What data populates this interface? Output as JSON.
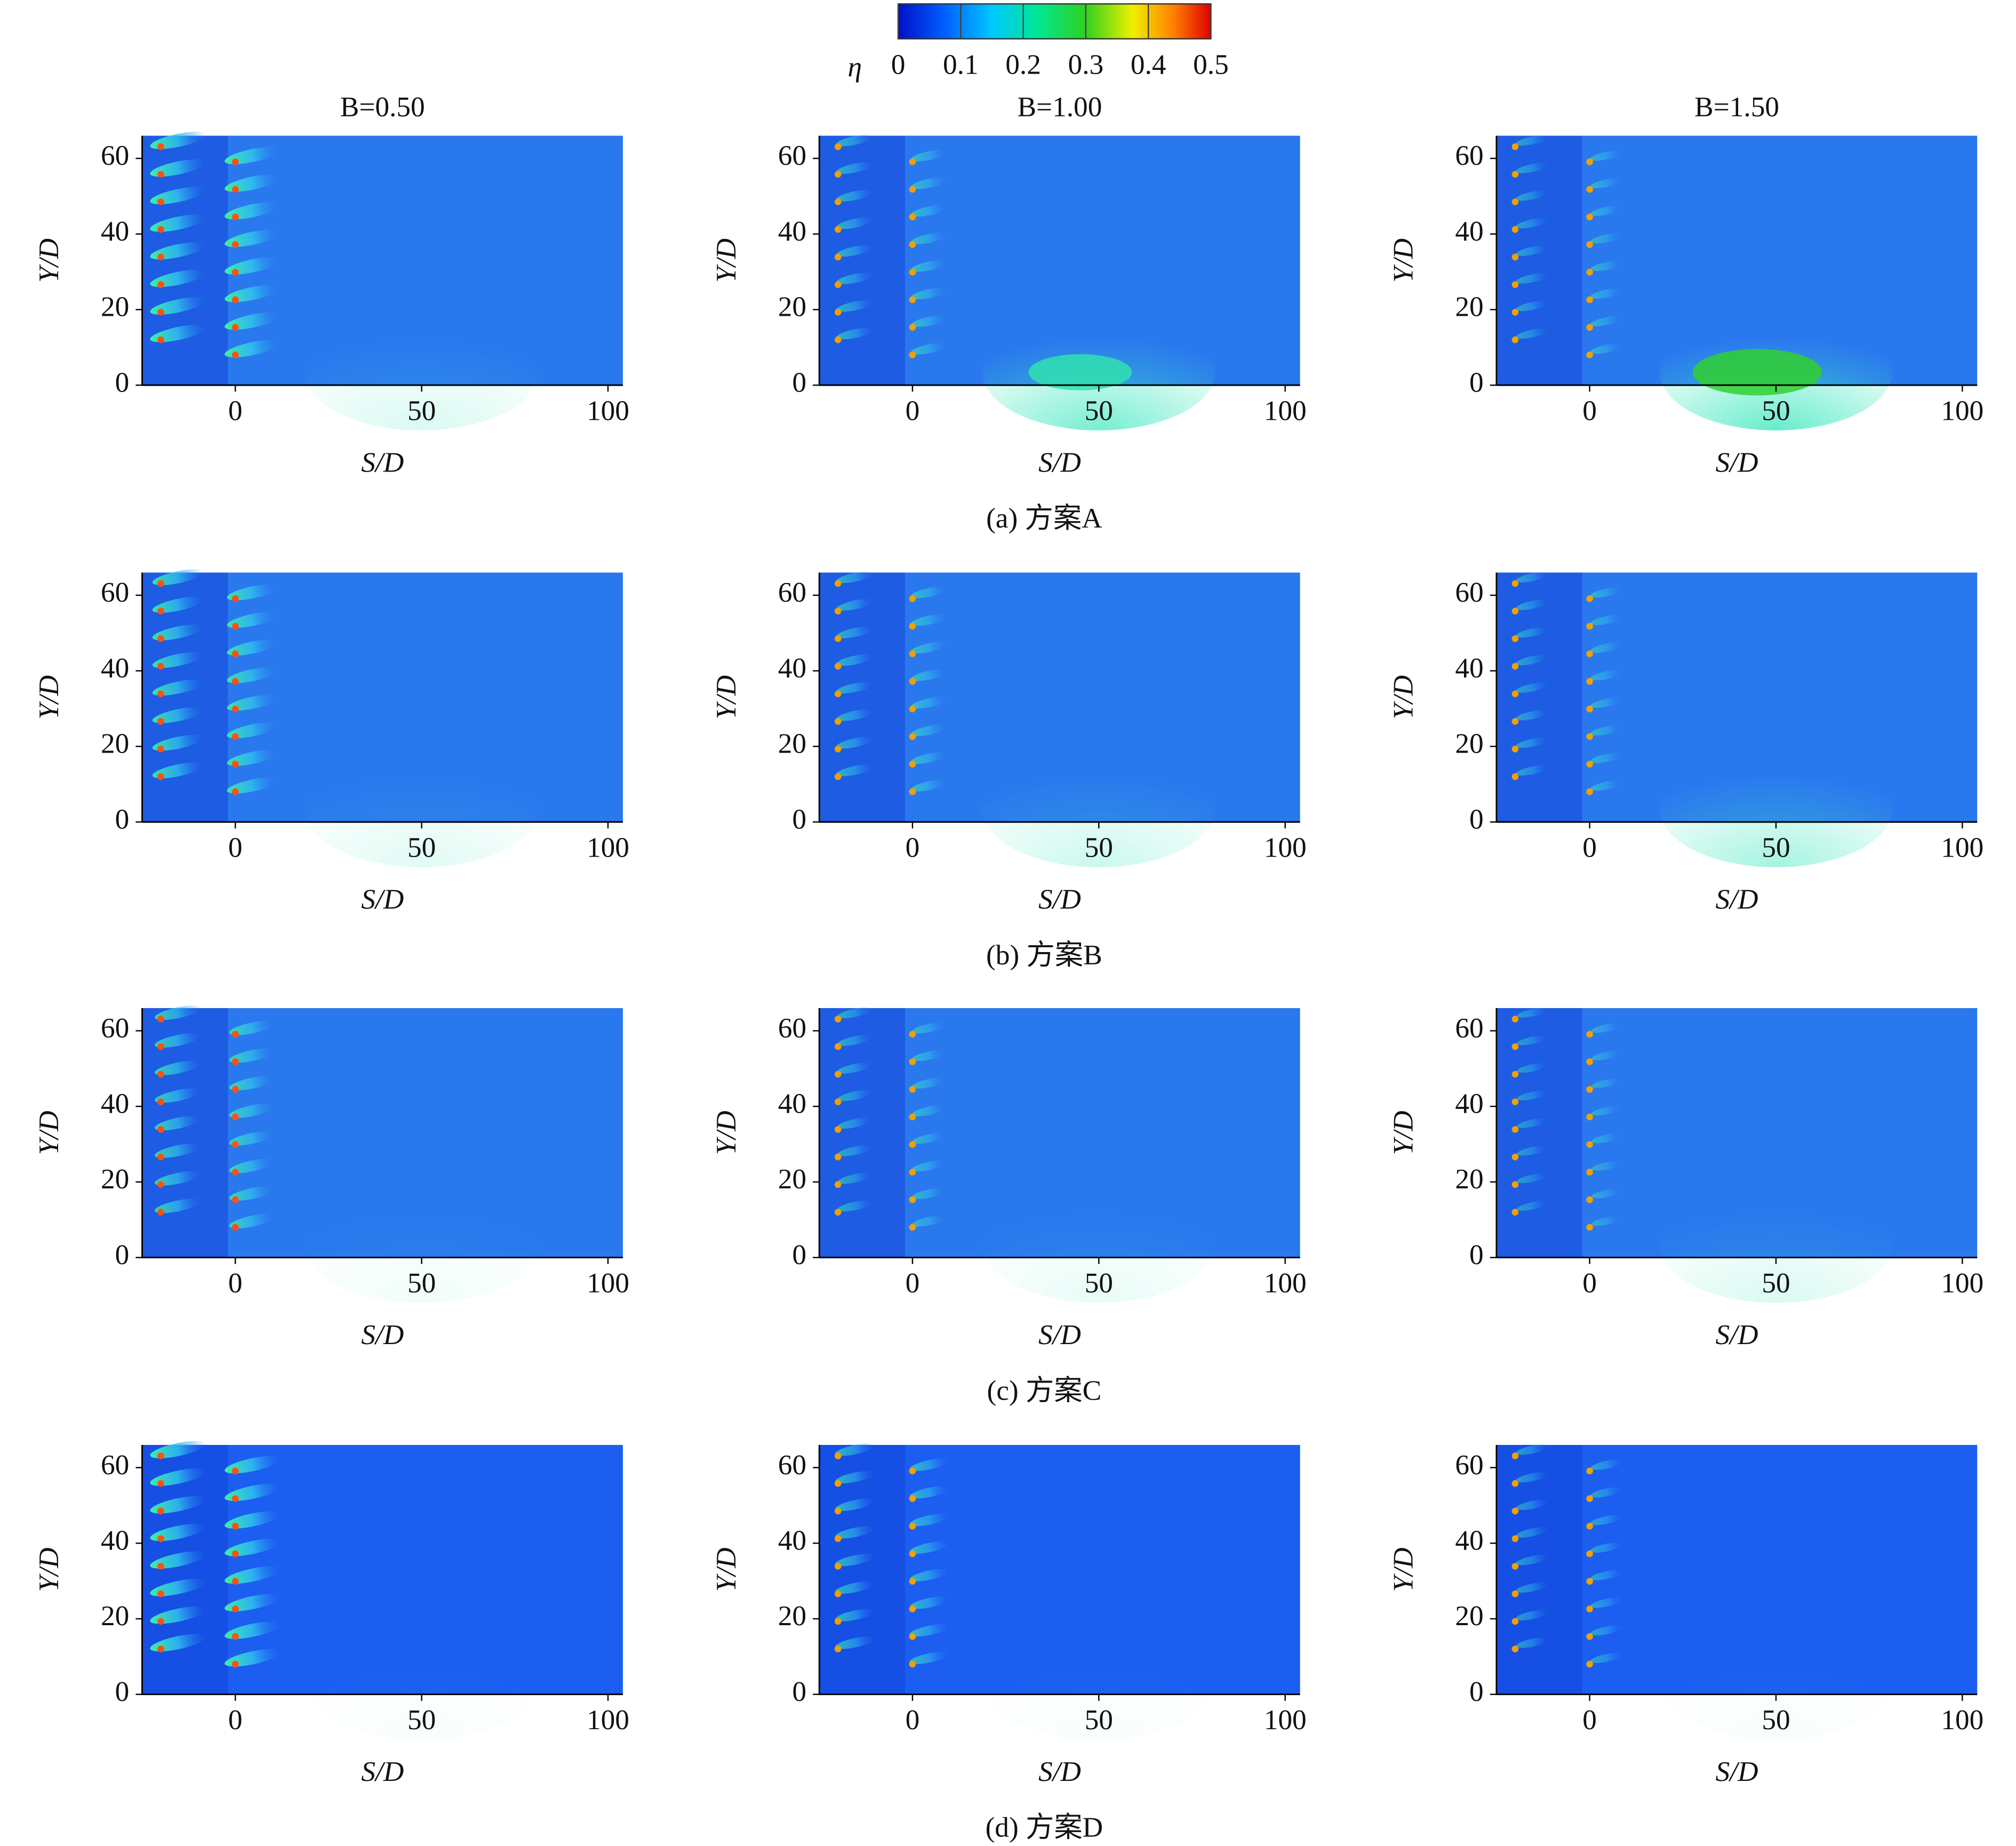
{
  "colorbar": {
    "label": "η",
    "lim": [
      0,
      0.5
    ],
    "ticks": [
      0,
      0.1,
      0.2,
      0.3,
      0.4,
      0.5
    ]
  },
  "captions": [
    "(a) 方案A",
    "(b) 方案B",
    "(c) 方案C",
    "(d) 方案D"
  ],
  "chart_data": [
    {
      "type": "heatmap",
      "title": "B=0.50",
      "xlabel": "S/D",
      "ylabel": "Y/D",
      "xlim": [
        -25,
        104
      ],
      "ylim": [
        0,
        66
      ],
      "xticks": [
        0,
        50,
        100
      ],
      "yticks": [
        0,
        20,
        40,
        60
      ]
    },
    {
      "type": "heatmap",
      "title": "B=1.00",
      "xlabel": "S/D",
      "ylabel": "Y/D",
      "xlim": [
        -25,
        104
      ],
      "ylim": [
        0,
        66
      ],
      "xticks": [
        0,
        50,
        100
      ],
      "yticks": [
        0,
        20,
        40,
        60
      ]
    },
    {
      "type": "heatmap",
      "title": "B=1.50",
      "xlabel": "S/D",
      "ylabel": "Y/D",
      "xlim": [
        -25,
        104
      ],
      "ylim": [
        0,
        66
      ],
      "xticks": [
        0,
        50,
        100
      ],
      "yticks": [
        0,
        20,
        40,
        60
      ]
    },
    {
      "type": "heatmap",
      "xlabel": "S/D",
      "ylabel": "Y/D",
      "xlim": [
        -25,
        104
      ],
      "ylim": [
        0,
        66
      ],
      "xticks": [
        0,
        50,
        100
      ],
      "yticks": [
        0,
        20,
        40,
        60
      ]
    },
    {
      "type": "heatmap",
      "xlabel": "S/D",
      "ylabel": "Y/D",
      "xlim": [
        -25,
        104
      ],
      "ylim": [
        0,
        66
      ],
      "xticks": [
        0,
        50,
        100
      ],
      "yticks": [
        0,
        20,
        40,
        60
      ]
    },
    {
      "type": "heatmap",
      "xlabel": "S/D",
      "ylabel": "Y/D",
      "xlim": [
        -25,
        104
      ],
      "ylim": [
        0,
        66
      ],
      "xticks": [
        0,
        50,
        100
      ],
      "yticks": [
        0,
        20,
        40,
        60
      ]
    },
    {
      "type": "heatmap",
      "xlabel": "S/D",
      "ylabel": "Y/D",
      "xlim": [
        -25,
        104
      ],
      "ylim": [
        0,
        66
      ],
      "xticks": [
        0,
        50,
        100
      ],
      "yticks": [
        0,
        20,
        40,
        60
      ]
    },
    {
      "type": "heatmap",
      "xlabel": "S/D",
      "ylabel": "Y/D",
      "xlim": [
        -25,
        104
      ],
      "ylim": [
        0,
        66
      ],
      "xticks": [
        0,
        50,
        100
      ],
      "yticks": [
        0,
        20,
        40,
        60
      ]
    },
    {
      "type": "heatmap",
      "xlabel": "S/D",
      "ylabel": "Y/D",
      "xlim": [
        -25,
        104
      ],
      "ylim": [
        0,
        66
      ],
      "xticks": [
        0,
        50,
        100
      ],
      "yticks": [
        0,
        20,
        40,
        60
      ]
    },
    {
      "type": "heatmap",
      "xlabel": "S/D",
      "ylabel": "Y/D",
      "xlim": [
        -25,
        104
      ],
      "ylim": [
        0,
        66
      ],
      "xticks": [
        0,
        50,
        100
      ],
      "yticks": [
        0,
        20,
        40,
        60
      ]
    },
    {
      "type": "heatmap",
      "xlabel": "S/D",
      "ylabel": "Y/D",
      "xlim": [
        -25,
        104
      ],
      "ylim": [
        0,
        66
      ],
      "xticks": [
        0,
        50,
        100
      ],
      "yticks": [
        0,
        20,
        40,
        60
      ]
    },
    {
      "type": "heatmap",
      "xlabel": "S/D",
      "ylabel": "Y/D",
      "xlim": [
        -25,
        104
      ],
      "ylim": [
        0,
        66
      ],
      "xticks": [
        0,
        50,
        100
      ],
      "yticks": [
        0,
        20,
        40,
        60
      ]
    }
  ]
}
